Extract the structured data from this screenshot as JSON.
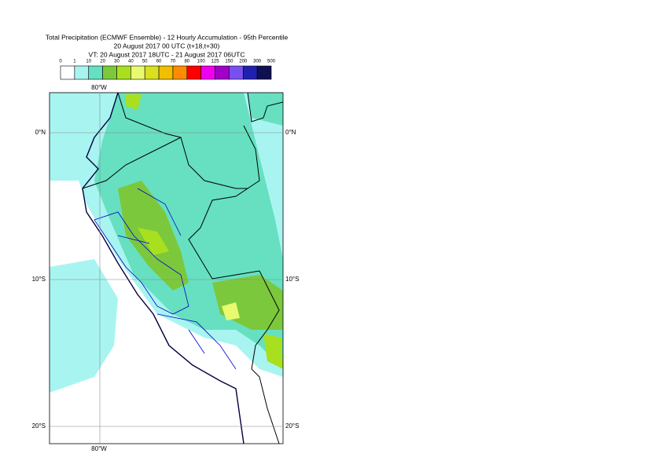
{
  "header": {
    "title_lines": [
      "Total Precipitation (ECMWF Ensemble) - 12 Hourly Accumulation - 95th Percentile",
      "20 August 2017 00 UTC (t+18,t+30)",
      "VT: 20 August 2017 18UTC - 21 August 2017 06UTC"
    ]
  },
  "legend": {
    "ticks": [
      0,
      1,
      10,
      20,
      30,
      40,
      50,
      60,
      70,
      80,
      100,
      125,
      150,
      200,
      300,
      500
    ],
    "colors": [
      "#ffffff",
      "#a8f4f0",
      "#66e0c0",
      "#7cc83c",
      "#a8e020",
      "#e8fa70",
      "#d8e020",
      "#f0c000",
      "#ff8c00",
      "#ff0000",
      "#f000f0",
      "#a000c8",
      "#7850f0",
      "#2020b0",
      "#101050"
    ]
  },
  "map": {
    "lon_labels": [
      "80°W",
      "80°W"
    ],
    "lat_labels": [
      "0°N",
      "10°S",
      "20°S",
      "0°N",
      "10°S",
      "20°S"
    ]
  }
}
